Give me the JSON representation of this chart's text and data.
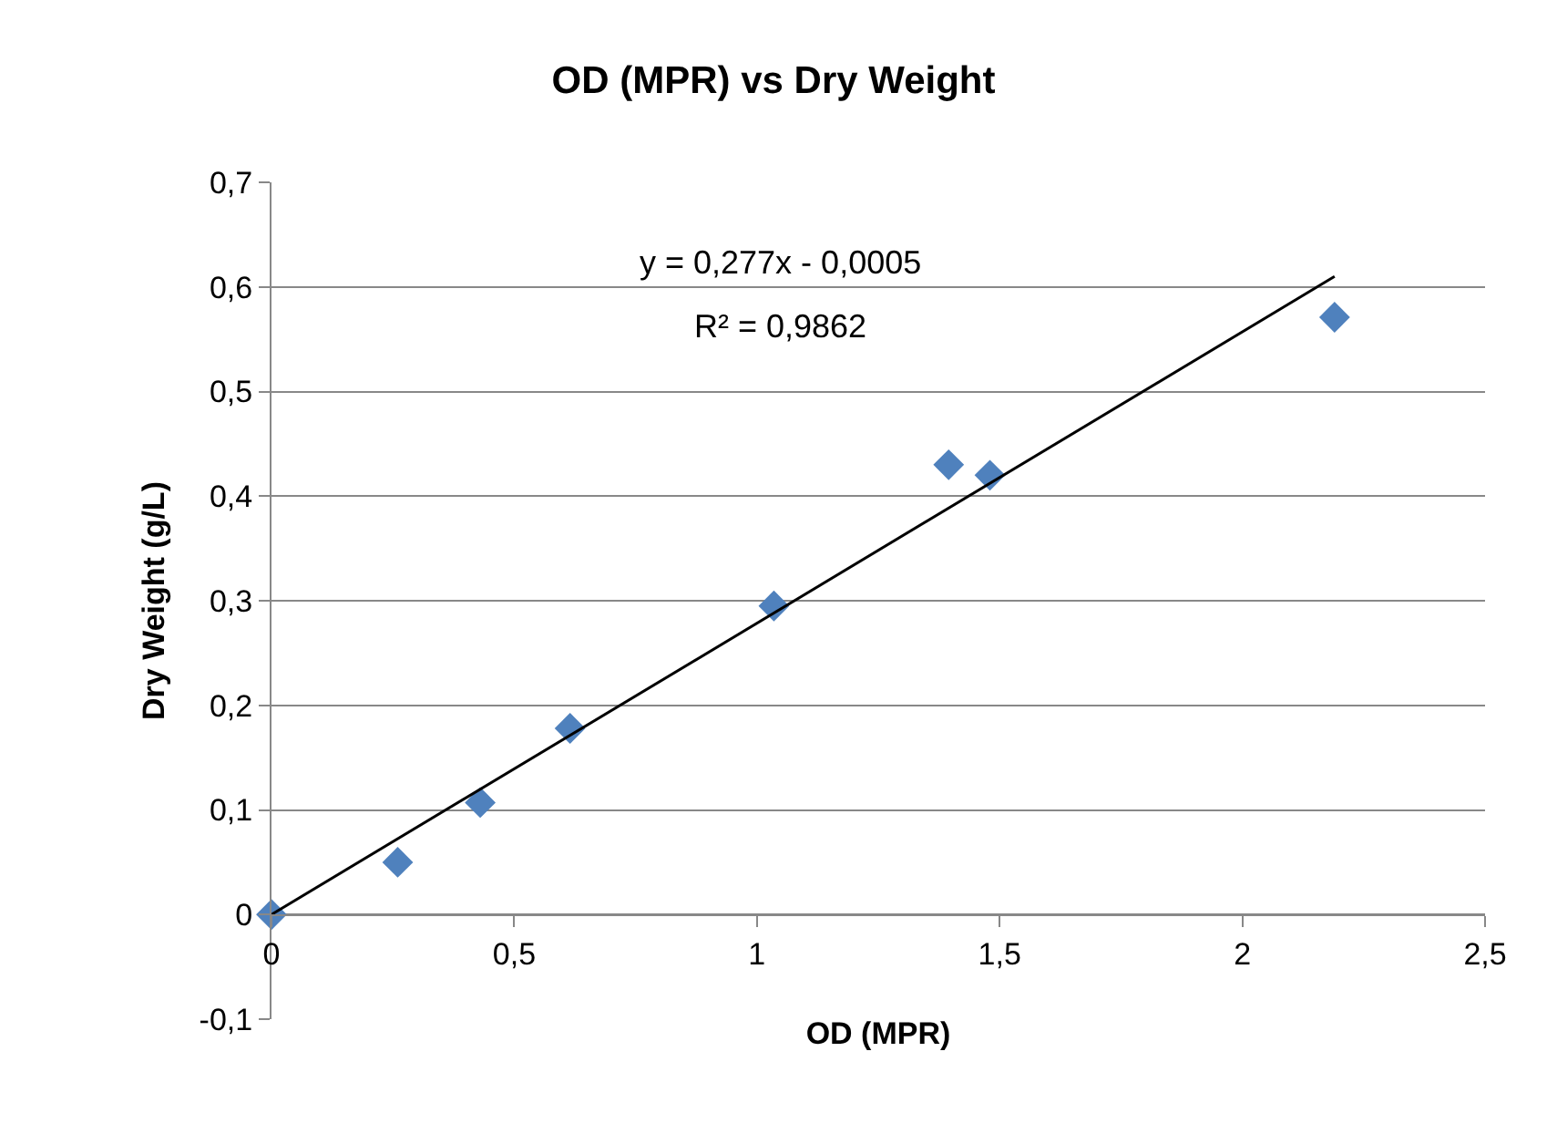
{
  "chart_data": {
    "type": "scatter",
    "title": "OD (MPR) vs Dry Weight",
    "xlabel": "OD (MPR)",
    "ylabel": "Dry Weight (g/L)",
    "annotations": [
      "y = 0,277x - 0,0005",
      "R² = 0,9862"
    ],
    "x": [
      0,
      0.26,
      0.43,
      0.615,
      1.035,
      1.395,
      1.48,
      2.19
    ],
    "series": [
      {
        "color": "#4f81bd",
        "values": [
          0,
          0.05,
          0.107,
          0.178,
          0.295,
          0.43,
          0.42,
          0.571
        ]
      },
      {
        "type": "line",
        "color": "#000000",
        "x": [
          0,
          2.19
        ],
        "values": [
          0,
          0.61
        ],
        "marker": "none"
      }
    ],
    "marker": "diamond",
    "grid": "y",
    "xlim": [
      0,
      2.5
    ],
    "xticks": [
      0,
      {
        "value": 0.5,
        "label": "0,5"
      },
      1,
      {
        "value": 1.5,
        "label": "1,5"
      },
      2,
      {
        "value": 2.5,
        "label": "2,5"
      }
    ],
    "ylim": [
      -0.1,
      0.7
    ],
    "yticks": [
      {
        "value": -0.1,
        "label": "-0,1"
      },
      0,
      {
        "value": 0.1,
        "label": "0,1"
      },
      {
        "value": 0.2,
        "label": "0,2"
      },
      {
        "value": 0.3,
        "label": "0,3"
      },
      {
        "value": 0.4,
        "label": "0,4"
      },
      {
        "value": 0.5,
        "label": "0,5"
      },
      {
        "value": 0.6,
        "label": "0,6"
      },
      {
        "value": 0.7,
        "label": "0,7"
      }
    ]
  }
}
